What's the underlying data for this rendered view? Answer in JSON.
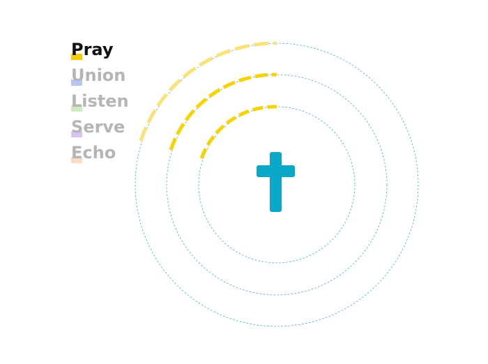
{
  "menu": {
    "items": [
      {
        "label": "Pray",
        "active": true,
        "swatch": "#f5cd00",
        "text_color": "#111111"
      },
      {
        "label": "Union",
        "active": false,
        "swatch": "#b9c6f5",
        "text_color": "#b5b5b5"
      },
      {
        "label": "Listen",
        "active": false,
        "swatch": "#cfeac2",
        "text_color": "#b5b5b5"
      },
      {
        "label": "Serve",
        "active": false,
        "swatch": "#d8c4ec",
        "text_color": "#b5b5b5"
      },
      {
        "label": "Echo",
        "active": false,
        "swatch": "#f8dcc3",
        "text_color": "#b5b5b5"
      }
    ]
  },
  "diagram": {
    "ring_color": "#3aaecc",
    "arc_colors": [
      "#f8d300",
      "#f8d300",
      "#fbe278"
    ],
    "cross_icon": "cross-icon",
    "cross_color": "#0aa8c6"
  }
}
